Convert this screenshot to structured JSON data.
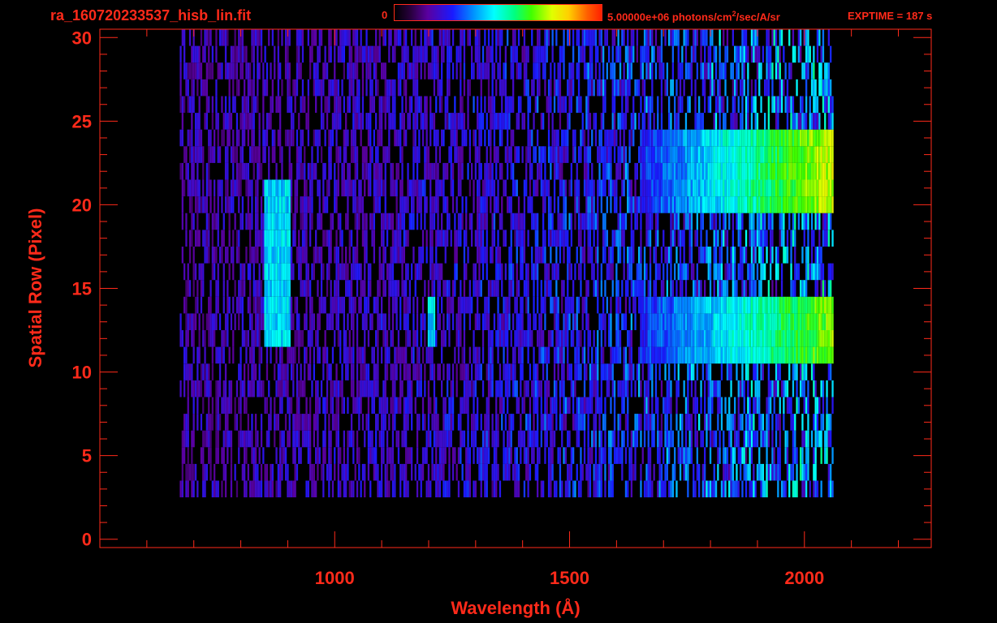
{
  "header": {
    "filename": "ra_160720233537_hisb_lin.fit",
    "colorbar_min": "0",
    "colorbar_max_value": "5.00000e+06 photons/cm",
    "colorbar_max_exponent": "2",
    "colorbar_max_tail": "/sec/A/sr",
    "exptime": "EXPTIME = 187 s"
  },
  "colors": {
    "axis": "#ff2a1a",
    "background": "#000000"
  },
  "chart_data": {
    "type": "heatmap",
    "title": "ra_160720233537_hisb_lin.fit",
    "xlabel": "Wavelength (Å)",
    "ylabel": "Spatial Row (Pixel)",
    "xlim": [
      500,
      2270
    ],
    "ylim": [
      -0.5,
      30.5
    ],
    "xticks": [
      1000,
      1500,
      2000
    ],
    "xtick_labels": [
      "1000",
      "1500",
      "2000"
    ],
    "yticks": [
      0,
      5,
      10,
      15,
      20,
      25,
      30
    ],
    "ytick_labels": [
      "0",
      "5",
      "10",
      "15",
      "20",
      "25",
      "30"
    ],
    "colorbar": {
      "min": 0,
      "max": 5000000,
      "unit": "photons/cm^2/sec/A/sr",
      "colormap": "rainbow"
    },
    "data_extent": {
      "wavelength_min": 670,
      "wavelength_max": 2060,
      "row_min": 3,
      "row_max": 30
    },
    "features": [
      {
        "name": "bright emission feature",
        "wavelength_range": [
          850,
          905
        ],
        "row_range": [
          12,
          21
        ],
        "level": 0.45
      },
      {
        "name": "line near 1200",
        "wavelength_range": [
          1195,
          1210
        ],
        "row_range": [
          12,
          14
        ],
        "level": 0.45
      },
      {
        "name": "continuum band upper",
        "wavelength_range": [
          1650,
          2060
        ],
        "row_range": [
          20,
          24
        ],
        "level": 0.7
      },
      {
        "name": "continuum band lower",
        "wavelength_range": [
          1650,
          2060
        ],
        "row_range": [
          11,
          14
        ],
        "level": 0.65
      }
    ]
  }
}
